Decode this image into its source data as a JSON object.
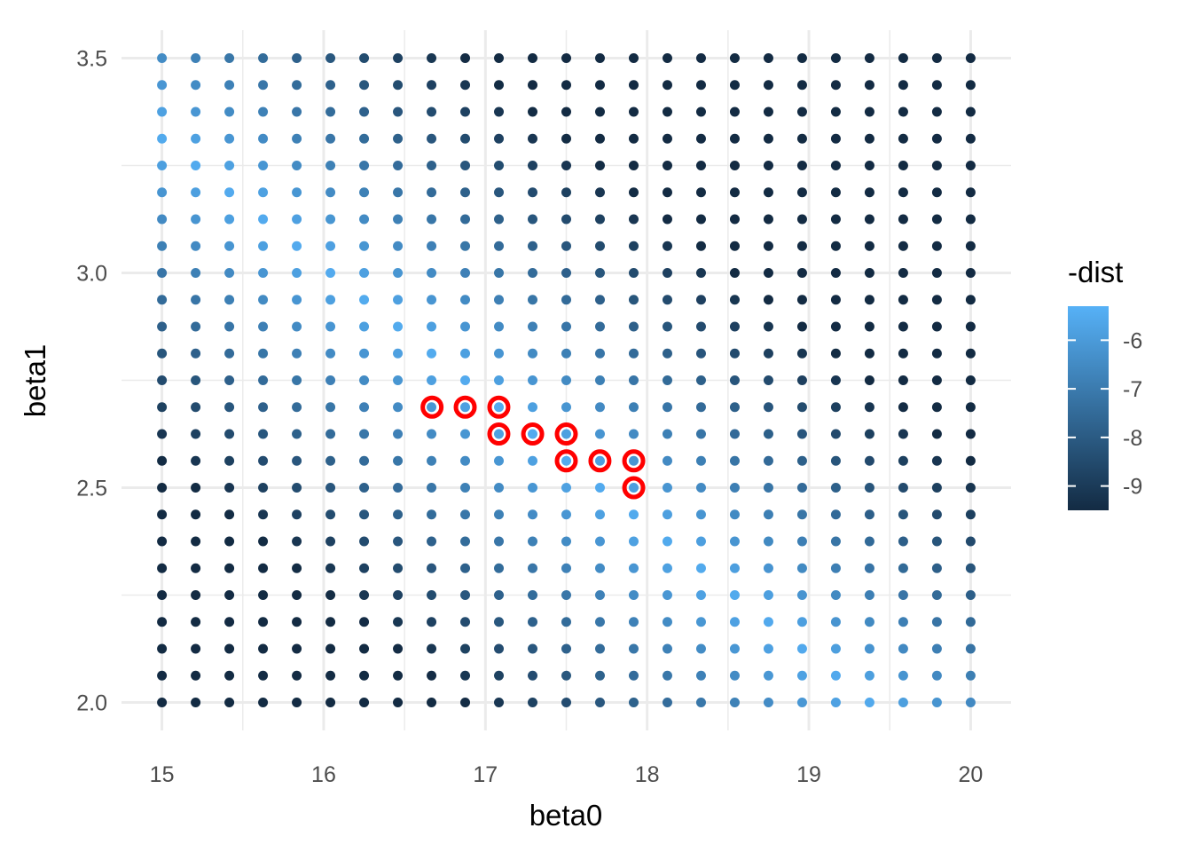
{
  "chart_data": {
    "type": "scatter",
    "title": "",
    "xlabel": "beta0",
    "ylabel": "beta1",
    "xlim": [
      14.75,
      20.25
    ],
    "ylim": [
      1.935,
      3.565
    ],
    "x_ticks": [
      15,
      16,
      17,
      18,
      19,
      20
    ],
    "x_tick_labels": [
      "15",
      "16",
      "17",
      "18",
      "19",
      "20"
    ],
    "y_ticks": [
      2.0,
      2.5,
      3.0,
      3.5
    ],
    "y_tick_labels": [
      "2.0",
      "2.5",
      "3.0",
      "3.5"
    ],
    "grid": true,
    "grid_x": {
      "start": 15,
      "stop": 20,
      "count": 25
    },
    "grid_y": {
      "start": 2.0,
      "stop": 3.5,
      "count": 25
    },
    "highlighted_points": [
      {
        "x": 16.67,
        "y": 2.6875
      },
      {
        "x": 16.875,
        "y": 2.6875
      },
      {
        "x": 17.083,
        "y": 2.6875
      },
      {
        "x": 17.083,
        "y": 2.625
      },
      {
        "x": 17.292,
        "y": 2.625
      },
      {
        "x": 17.5,
        "y": 2.625
      },
      {
        "x": 17.5,
        "y": 2.5625
      },
      {
        "x": 17.708,
        "y": 2.5625
      },
      {
        "x": 17.917,
        "y": 2.5625
      },
      {
        "x": 17.917,
        "y": 2.5
      }
    ],
    "highlight_color": "#ff0000",
    "color_legend": {
      "title": "-dist",
      "position": "right",
      "min": -9.5,
      "max": -5.3,
      "ticks": [
        -6,
        -7,
        -8,
        -9
      ],
      "tick_labels": [
        "-6",
        "-7",
        "-8",
        "-9"
      ],
      "low_color": "#132b43",
      "high_color": "#56b1f7"
    }
  }
}
